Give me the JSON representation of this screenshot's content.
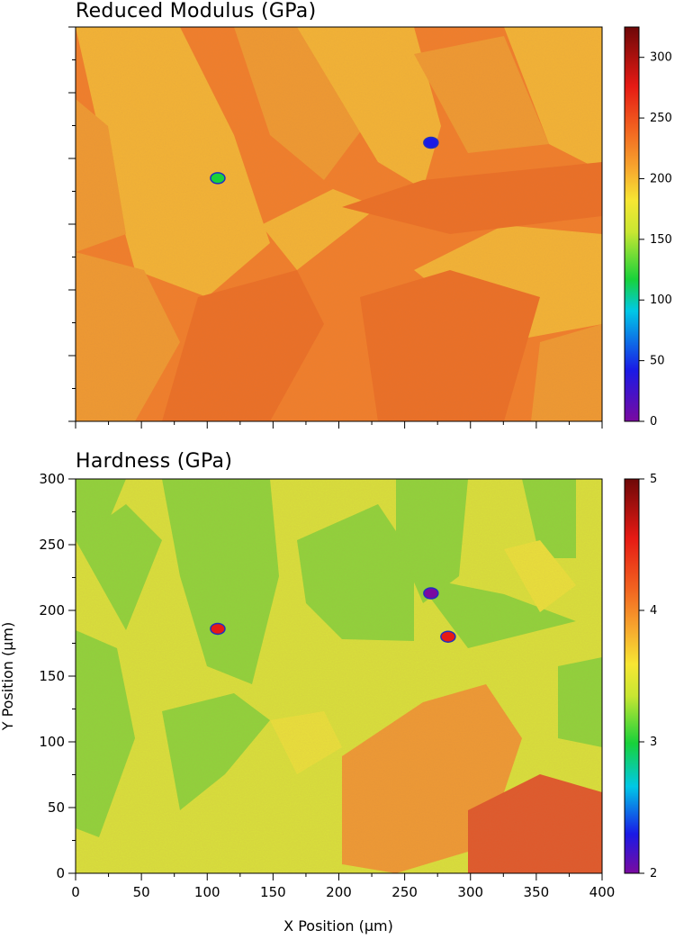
{
  "chart_data": [
    {
      "type": "heatmap",
      "title": "Reduced Modulus (GPa)",
      "xlim": [
        0,
        400
      ],
      "ylim": [
        0,
        300
      ],
      "x_ticks": [],
      "y_ticks": [],
      "colorbar": {
        "min": 0,
        "max": 325,
        "ticks": [
          0,
          50,
          100,
          150,
          200,
          250,
          300
        ]
      },
      "colors": {
        "bg": "#f27e29",
        "light": "#f4b534",
        "mid": "#f09a30",
        "dark": "#ec6f24"
      },
      "inclusions": [
        {
          "x": 270,
          "y": 212,
          "value": 60
        },
        {
          "x": 108,
          "y": 185,
          "value": 150
        }
      ]
    },
    {
      "type": "heatmap",
      "title": "Hardness (GPa)",
      "xlabel": "X Position  (μm)",
      "ylabel": "Y Position  (μm)",
      "xlim": [
        0,
        400
      ],
      "ylim": [
        0,
        300
      ],
      "x_ticks": [
        0,
        50,
        100,
        150,
        200,
        250,
        300,
        350,
        400
      ],
      "y_ticks": [
        0,
        50,
        100,
        150,
        200,
        250,
        300
      ],
      "colorbar": {
        "min": 2,
        "max": 5,
        "ticks": [
          2,
          3,
          4,
          5
        ]
      },
      "colors": {
        "bg": "#d9e33a",
        "green": "#8ed63a",
        "yellow": "#eae33a",
        "orange": "#ef9a33",
        "red": "#e0582a"
      },
      "inclusions": [
        {
          "x": 270,
          "y": 213,
          "value": 2.3
        },
        {
          "x": 108,
          "y": 186,
          "value": 4.8
        },
        {
          "x": 283,
          "y": 180,
          "value": 4.6
        }
      ]
    }
  ]
}
